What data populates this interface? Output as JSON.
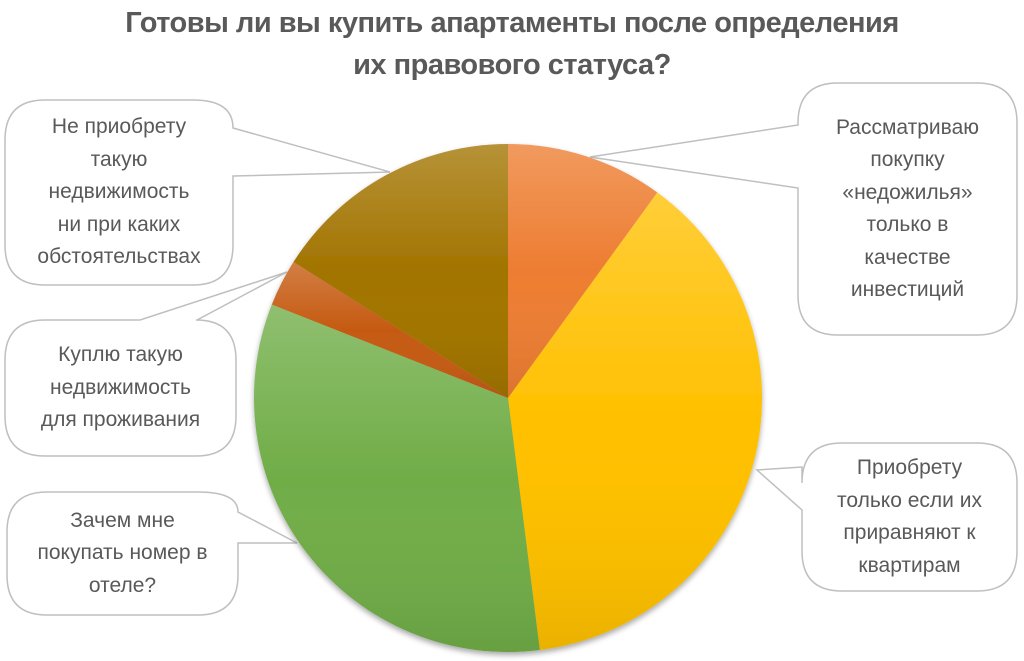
{
  "title": {
    "line1": "Готовы ли вы купить апартаменты после определения",
    "line2": "их правового статуса?"
  },
  "chart_data": {
    "type": "pie",
    "title": "Готовы ли вы купить апартаменты после определения их правового статуса?",
    "start_angle_deg": 0,
    "direction": "clockwise",
    "legend": "none (callout data labels)",
    "categories": [
      "Рассматриваю покупку «недожилья» только в качестве инвестиций",
      "Приобрету только если их приравняют к квартирам",
      "Зачем мне покупать номер в отеле?",
      "Куплю такую недвижимость для проживания",
      "Не приобрету такую недвижимость ни при каких обстоятельствах"
    ],
    "values": [
      10,
      38,
      33,
      3,
      16
    ],
    "unit": "%",
    "colors": [
      "#ED7D31",
      "#FFC000",
      "#70AD47",
      "#C55A11",
      "#A27400"
    ]
  },
  "callouts": [
    {
      "id": "invest",
      "lines": [
        "Рассматриваю",
        "покупку",
        "«недожилья»",
        "только в",
        "качестве",
        "инвестиций"
      ]
    },
    {
      "id": "only-if-apartments",
      "lines": [
        "Приобрету",
        "только если их",
        "приравняют к",
        "квартирам"
      ]
    },
    {
      "id": "hotel-room",
      "lines": [
        "Зачем мне",
        "покупать номер в",
        "отеле?"
      ]
    },
    {
      "id": "live",
      "lines": [
        "Куплю такую",
        "недвижимость",
        "для проживания"
      ]
    },
    {
      "id": "never",
      "lines": [
        "Не приобрету",
        "такую",
        "недвижимость",
        "ни при каких",
        "обстоятельствах"
      ]
    }
  ]
}
